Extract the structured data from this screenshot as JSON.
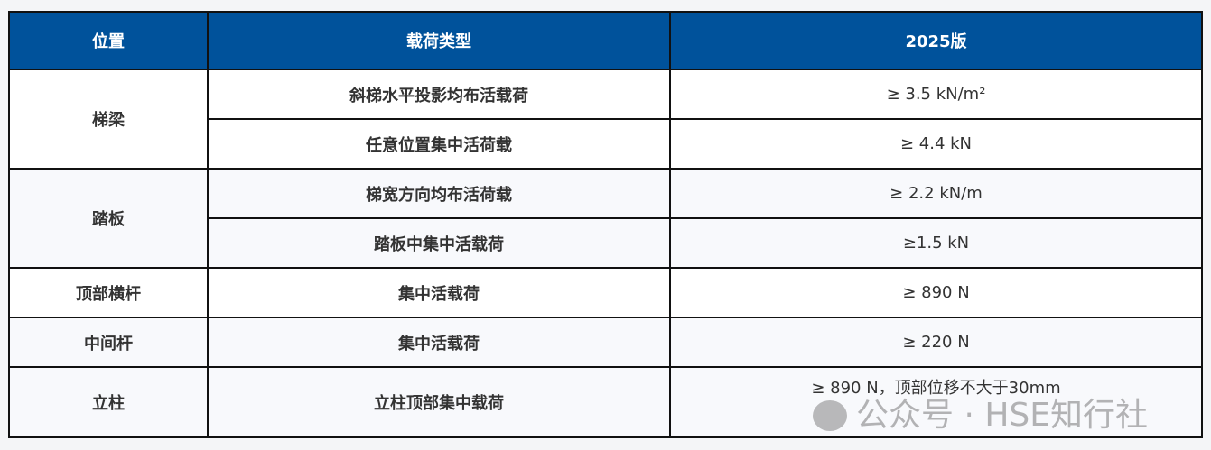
{
  "headers": [
    "位置",
    "载荷类型",
    "2025版"
  ],
  "groups": [
    {
      "position": "梯梁",
      "rows": [
        {
          "load": "斜梯水平投影均布活载荷",
          "value": "≥ 3.5 kN/m²"
        },
        {
          "load": "任意位置集中活荷载",
          "value": "≥ 4.4 kN"
        }
      ]
    },
    {
      "position": "踏板",
      "rows": [
        {
          "load": "梯宽方向均布活荷载",
          "value": "≥ 2.2 kN/m"
        },
        {
          "load": "踏板中集中活载荷",
          "value": "≥1.5 kN"
        }
      ]
    },
    {
      "position": "顶部横杆",
      "rows": [
        {
          "load": "集中活载荷",
          "value": "≥ 890 N"
        }
      ]
    },
    {
      "position": "中间杆",
      "rows": [
        {
          "load": "集中活载荷",
          "value": "≥ 220 N"
        }
      ]
    },
    {
      "position": "立柱",
      "rows": [
        {
          "load": "立柱顶部集中载荷",
          "value": "≥ 890 N，顶部位移不大于30mm"
        }
      ]
    }
  ],
  "watermark": {
    "text": "公众号 · HSE知行社",
    "icon": "wechat-icon"
  },
  "colors": {
    "header_bg": "#00529b"
  }
}
